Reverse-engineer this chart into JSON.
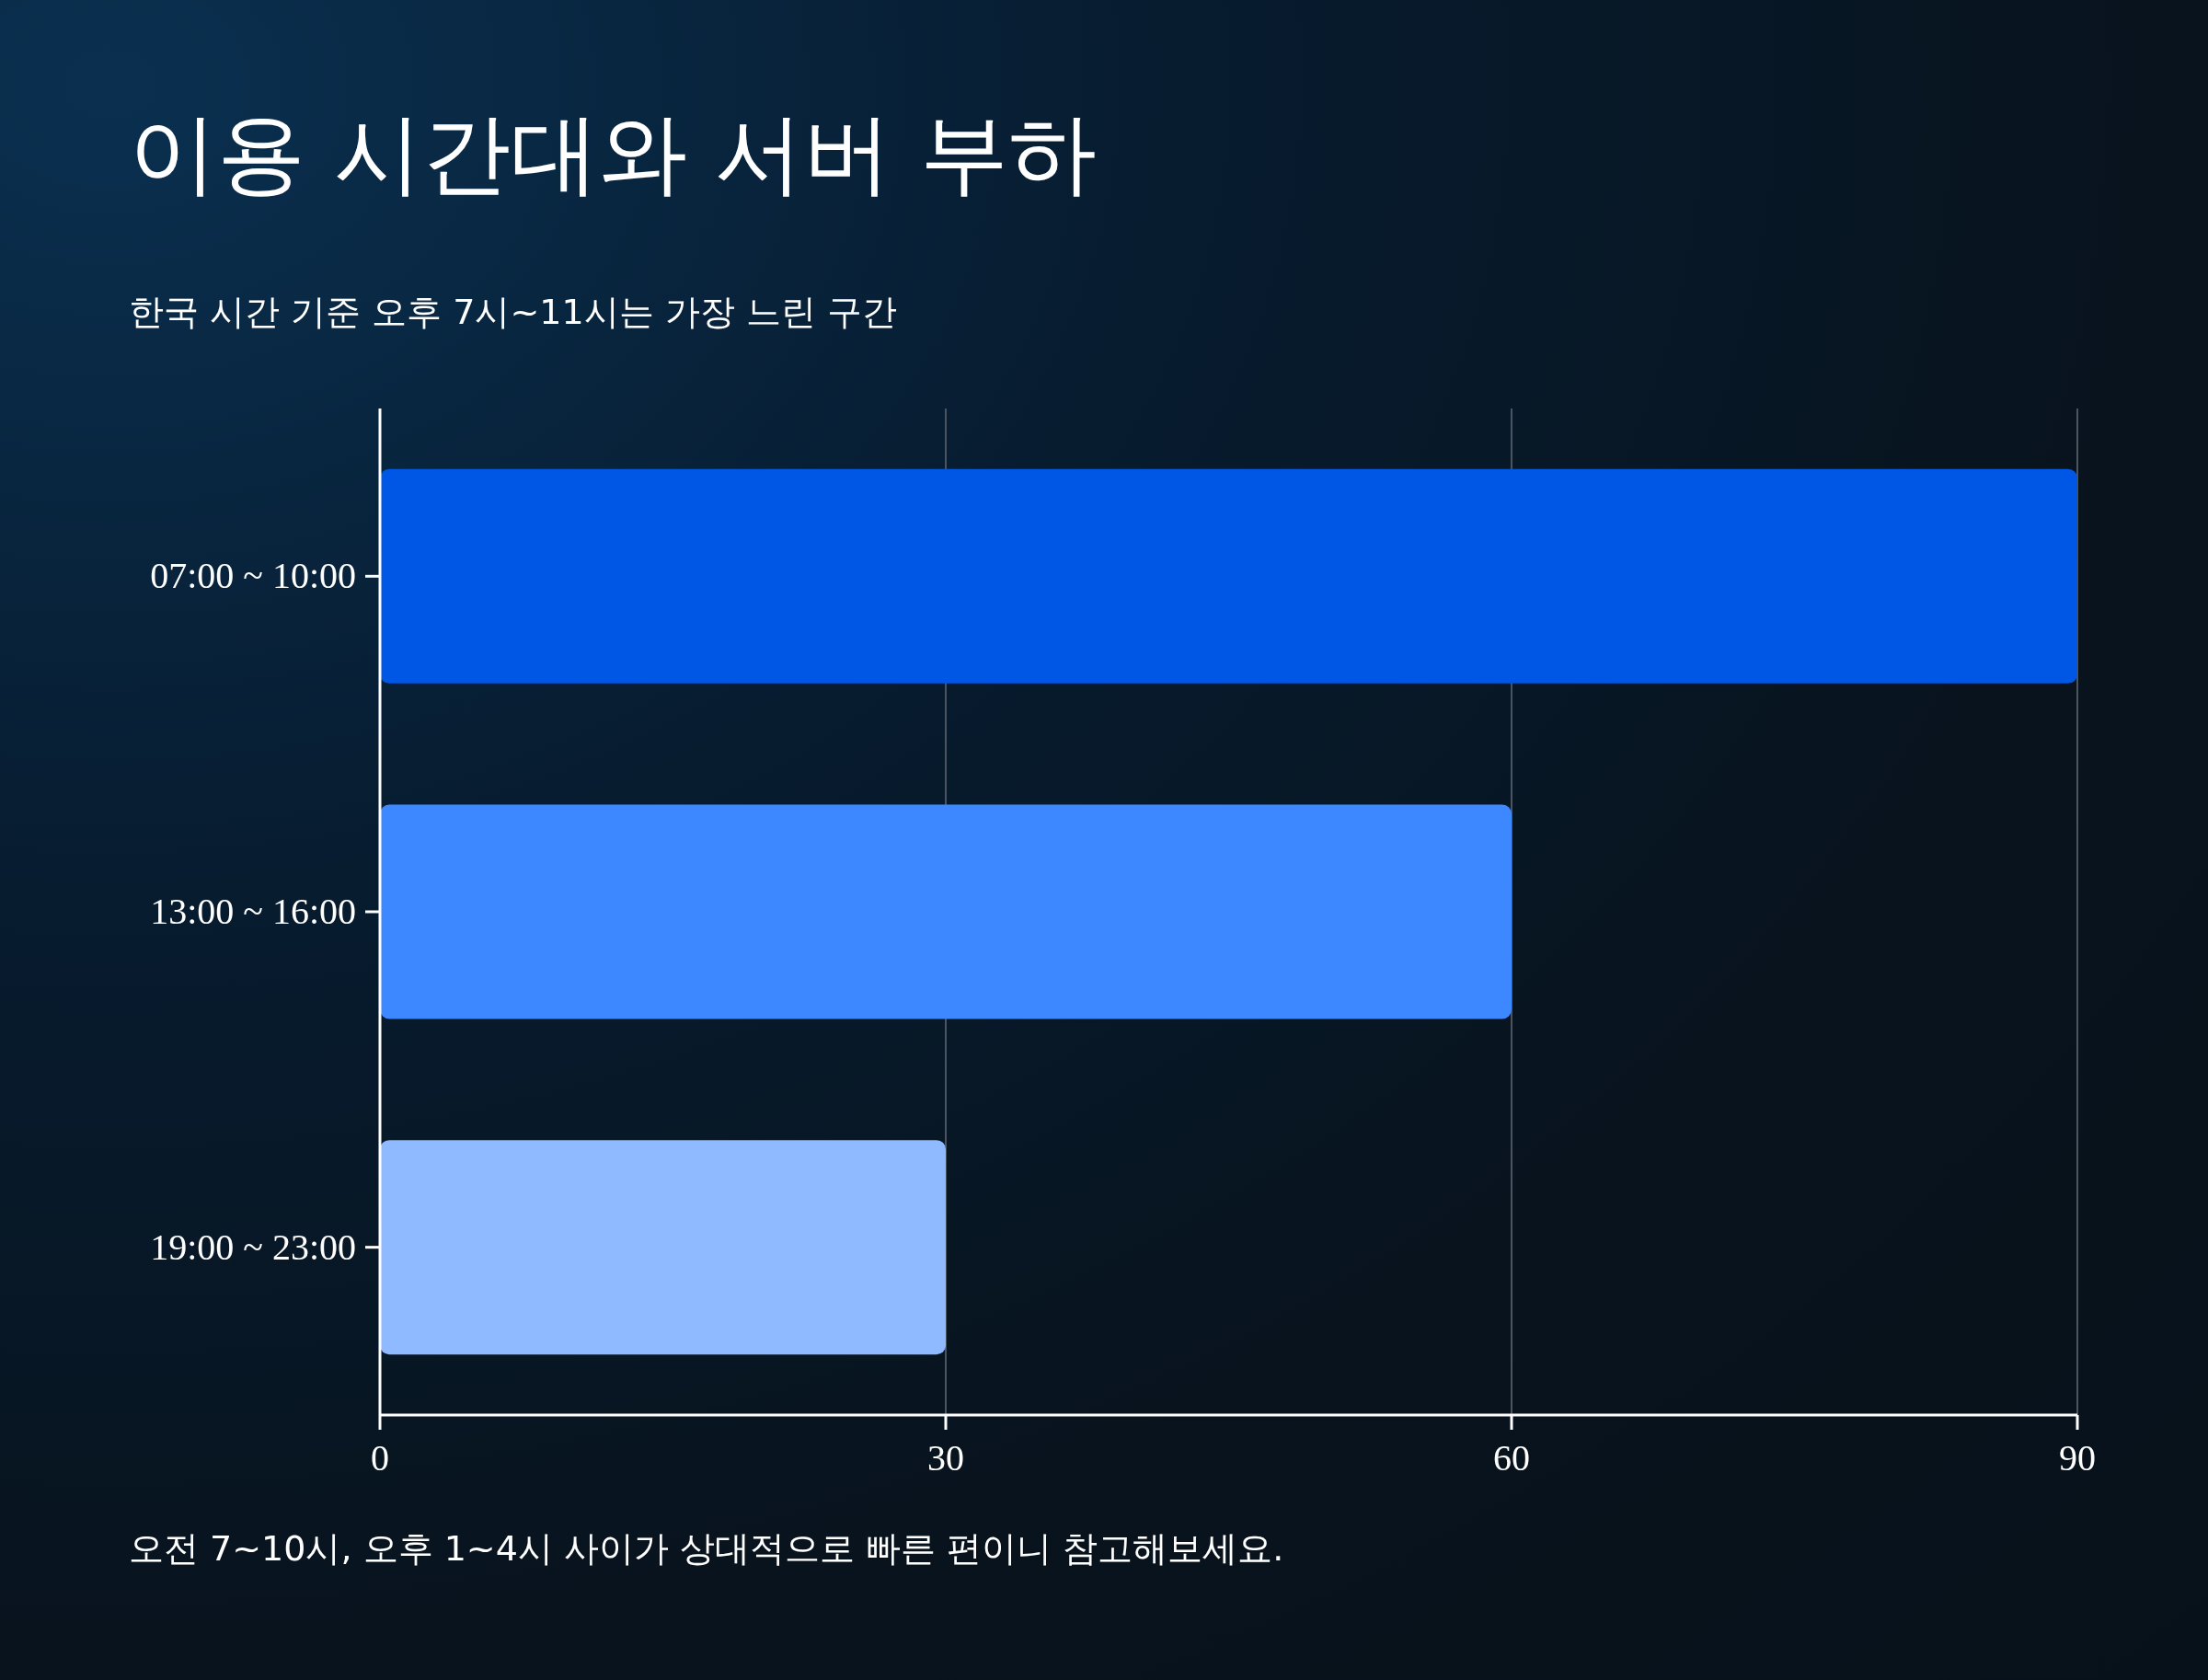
{
  "chart_data": {
    "type": "bar",
    "orientation": "horizontal",
    "title": "이용 시간대와 서버 부하",
    "subtitle": "한국 시간 기준 오후 7시~11시는 가장 느린 구간",
    "categories": [
      "07:00 ~ 10:00",
      "13:00 ~ 16:00",
      "19:00 ~ 23:00"
    ],
    "values": [
      90,
      60,
      30
    ],
    "colors": [
      "#0057e6",
      "#3d87ff",
      "#8fbaff"
    ],
    "xlim": [
      0,
      90
    ],
    "xticks": [
      0,
      30,
      60,
      90
    ],
    "grid": "x",
    "annotations": [
      "오전 7~10시, 오후 1~4시 사이가 상대적으로 빠른 편이니 참고해보세요."
    ]
  }
}
